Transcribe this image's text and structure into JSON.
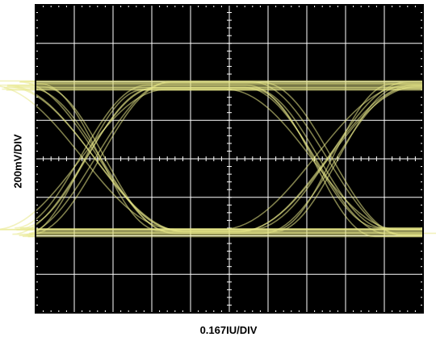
{
  "chart_data": {
    "type": "line",
    "title": "",
    "xlabel": "0.167IU/DIV",
    "ylabel": "200mV/DIV",
    "divisions": {
      "x": 10,
      "y": 8
    },
    "background": "#000000",
    "grid": true,
    "grid_color": "#ffffff",
    "trace_color": "#e8e888",
    "eye_diagram": {
      "high_level_div": 1.9,
      "low_level_div": -1.9,
      "crossing_level_div": 0.0,
      "crossings_x_div": [
        1.6,
        7.6
      ],
      "transition_spread_div": 1.2
    }
  }
}
